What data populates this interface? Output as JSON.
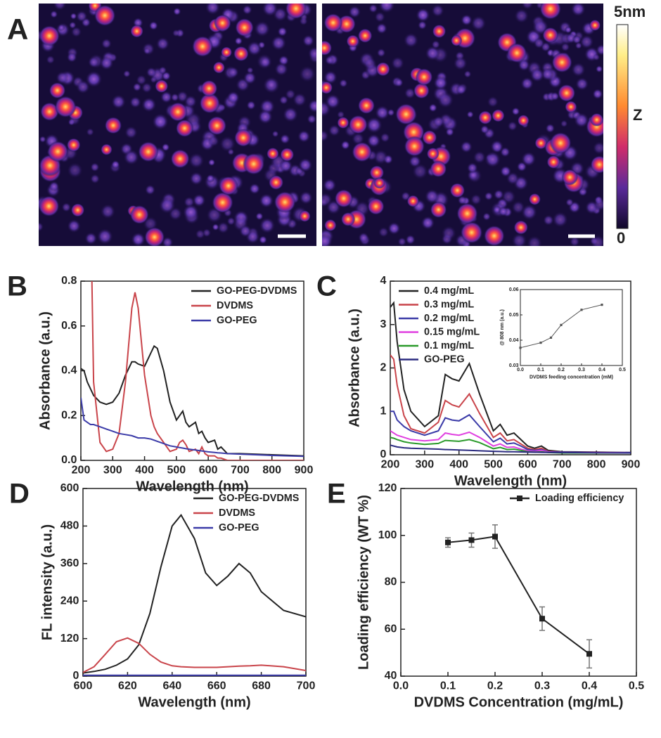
{
  "image_panel": {
    "panel": "A",
    "colorbar_top": "5nm",
    "colorbar_axis": "Z",
    "colorbar_bottom": "0"
  },
  "chart_data": [
    {
      "type": "line",
      "panel": "B",
      "xlabel": "Wavelength (nm)",
      "ylabel": "Absorbance (a.u.)",
      "xlim": [
        200,
        900
      ],
      "xticks": [
        200,
        300,
        400,
        500,
        600,
        700,
        800,
        900
      ],
      "ylim": [
        0,
        0.8
      ],
      "yticks": [
        {
          "value": 0,
          "label": "0.0"
        },
        0.2,
        0.4,
        0.6,
        0.8
      ],
      "legend": "upper right",
      "x": [
        200,
        210,
        220,
        230,
        240,
        260,
        280,
        300,
        320,
        340,
        360,
        370,
        380,
        400,
        420,
        430,
        440,
        460,
        480,
        500,
        510,
        520,
        530,
        540,
        560,
        570,
        580,
        590,
        600,
        620,
        630,
        640,
        660,
        700,
        800,
        900
      ],
      "series": [
        {
          "name": "GO-PEG-DVDMS",
          "color": "#222222",
          "values": [
            0.41,
            0.4,
            0.35,
            0.32,
            0.29,
            0.26,
            0.25,
            0.26,
            0.3,
            0.38,
            0.44,
            0.44,
            0.43,
            0.42,
            0.48,
            0.51,
            0.5,
            0.4,
            0.26,
            0.18,
            0.2,
            0.22,
            0.17,
            0.15,
            0.17,
            0.12,
            0.13,
            0.1,
            0.08,
            0.09,
            0.05,
            0.06,
            0.03,
            0.03,
            0.025,
            0.02
          ]
        },
        {
          "name": "DVDMS",
          "color": "#c9444a",
          "values": [
            null,
            null,
            null,
            1.2,
            0.35,
            0.08,
            0.04,
            0.05,
            0.12,
            0.35,
            0.68,
            0.75,
            0.68,
            0.38,
            0.2,
            0.15,
            0.12,
            0.08,
            0.04,
            0.05,
            0.08,
            0.09,
            0.07,
            0.04,
            0.05,
            0.03,
            0.06,
            0.03,
            0.02,
            0.02,
            0.01,
            0.01,
            0,
            0,
            0,
            0
          ]
        },
        {
          "name": "GO-PEG",
          "color": "#3b3ba8",
          "values": [
            0.28,
            0.18,
            0.17,
            0.16,
            0.16,
            0.15,
            0.14,
            0.13,
            0.12,
            0.115,
            0.11,
            0.105,
            0.1,
            0.1,
            0.095,
            0.09,
            0.085,
            0.075,
            0.065,
            0.06,
            0.057,
            0.055,
            0.052,
            0.05,
            0.046,
            0.044,
            0.042,
            0.04,
            0.038,
            0.035,
            0.034,
            0.033,
            0.03,
            0.028,
            0.022,
            0.018
          ]
        }
      ]
    },
    {
      "type": "line",
      "panel": "C",
      "xlabel": "Wavelength (nm)",
      "ylabel": "Absorbance (a.u.)",
      "xlim": [
        200,
        900
      ],
      "xticks": [
        200,
        300,
        400,
        500,
        600,
        700,
        800,
        900
      ],
      "ylim": [
        0,
        4
      ],
      "yticks": [
        0,
        1,
        2,
        3,
        4
      ],
      "legend": "upper left",
      "x": [
        200,
        210,
        220,
        240,
        260,
        300,
        340,
        360,
        380,
        400,
        430,
        460,
        500,
        520,
        540,
        560,
        580,
        600,
        620,
        640,
        660,
        700,
        800,
        900
      ],
      "series": [
        {
          "name": "0.4 mg/mL",
          "color": "#222222",
          "values": [
            3.4,
            3.5,
            2.6,
            1.5,
            1.0,
            0.65,
            0.9,
            1.85,
            1.75,
            1.7,
            2.1,
            1.4,
            0.55,
            0.7,
            0.45,
            0.5,
            0.35,
            0.2,
            0.15,
            0.2,
            0.1,
            0.07,
            0.06,
            0.05
          ]
        },
        {
          "name": "0.3 mg/mL",
          "color": "#c9444a",
          "values": [
            2.3,
            2.2,
            1.6,
            0.9,
            0.6,
            0.5,
            0.75,
            1.25,
            1.15,
            1.1,
            1.4,
            0.95,
            0.4,
            0.5,
            0.32,
            0.35,
            0.25,
            0.15,
            0.12,
            0.15,
            0.08,
            0.06,
            0.05,
            0.05
          ]
        },
        {
          "name": "0.2 mg/mL",
          "color": "#3b3ba8",
          "values": [
            1.0,
            1.0,
            0.8,
            0.65,
            0.55,
            0.45,
            0.55,
            0.85,
            0.8,
            0.78,
            0.92,
            0.65,
            0.3,
            0.38,
            0.25,
            0.27,
            0.2,
            0.12,
            0.1,
            0.12,
            0.07,
            0.06,
            0.05,
            0.05
          ]
        },
        {
          "name": "0.15 mg/mL",
          "color": "#e040e0",
          "values": [
            0.55,
            0.5,
            0.45,
            0.4,
            0.35,
            0.32,
            0.35,
            0.5,
            0.47,
            0.45,
            0.52,
            0.4,
            0.2,
            0.25,
            0.17,
            0.18,
            0.13,
            0.09,
            0.08,
            0.1,
            0.06,
            0.05,
            0.05,
            0.04
          ]
        },
        {
          "name": "0.1 mg/mL",
          "color": "#2a9a2a",
          "values": [
            0.4,
            0.38,
            0.35,
            0.3,
            0.27,
            0.24,
            0.26,
            0.33,
            0.32,
            0.31,
            0.35,
            0.28,
            0.14,
            0.17,
            0.12,
            0.13,
            0.1,
            0.07,
            0.06,
            0.07,
            0.05,
            0.04,
            0.04,
            0.04
          ]
        },
        {
          "name": "GO-PEG",
          "color": "#2b2b80",
          "values": [
            0.22,
            0.2,
            0.18,
            0.16,
            0.15,
            0.14,
            0.13,
            0.12,
            0.115,
            0.11,
            0.1,
            0.09,
            0.08,
            0.075,
            0.07,
            0.068,
            0.065,
            0.06,
            0.058,
            0.055,
            0.053,
            0.05,
            0.045,
            0.04
          ]
        }
      ],
      "inset": {
        "type": "line",
        "markers": true,
        "xlabel": "DVDMS feeding concentration (mM)",
        "ylabel": "@ 808 nm (a.u.)",
        "xlim": [
          0,
          0.5
        ],
        "xticks": [
          {
            "value": 0,
            "label": "0.0"
          },
          0.1,
          0.2,
          0.3,
          0.4,
          0.5
        ],
        "ylim": [
          0.03,
          0.06
        ],
        "yticks": [
          0.03,
          0.04,
          0.05,
          0.06
        ],
        "x": [
          0,
          0.1,
          0.15,
          0.2,
          0.3,
          0.4
        ],
        "series": [
          {
            "color": "#555555",
            "values": [
              0.037,
              0.039,
              0.041,
              0.046,
              0.052,
              0.054
            ]
          }
        ]
      }
    },
    {
      "type": "line",
      "panel": "D",
      "xlabel": "Wavelength (nm)",
      "ylabel": "FL intensity (a.u.)",
      "xlim": [
        600,
        700
      ],
      "xticks": [
        600,
        620,
        640,
        660,
        680,
        700
      ],
      "ylim": [
        0,
        600
      ],
      "yticks": [
        0,
        120,
        240,
        360,
        480,
        600
      ],
      "legend": "upper right",
      "x": [
        600,
        605,
        610,
        615,
        620,
        625,
        630,
        635,
        640,
        644,
        650,
        655,
        660,
        665,
        670,
        675,
        680,
        690,
        700
      ],
      "series": [
        {
          "name": "GO-PEG-DVDMS",
          "color": "#222222",
          "values": [
            10,
            15,
            22,
            35,
            55,
            100,
            200,
            350,
            480,
            515,
            440,
            330,
            290,
            320,
            360,
            330,
            270,
            210,
            190
          ]
        },
        {
          "name": "DVDMS",
          "color": "#c9444a",
          "values": [
            12,
            30,
            70,
            110,
            122,
            105,
            70,
            45,
            33,
            30,
            28,
            28,
            28,
            30,
            32,
            33,
            35,
            30,
            18
          ]
        },
        {
          "name": "GO-PEG",
          "color": "#3b3ba8",
          "values": [
            3,
            3,
            3,
            3,
            3,
            3,
            3,
            3,
            3,
            3,
            3,
            3,
            3,
            3,
            3,
            3,
            3,
            3,
            3
          ]
        }
      ]
    },
    {
      "type": "line",
      "panel": "E",
      "markers": true,
      "xlabel": "DVDMS Concentration (mg/mL)",
      "ylabel": "Loading efficiency (WT %)",
      "xlim": [
        0,
        0.5
      ],
      "xticks": [
        {
          "value": 0,
          "label": "0.0"
        },
        0.1,
        0.2,
        0.3,
        0.4,
        0.5
      ],
      "ylim": [
        40,
        120
      ],
      "yticks": [
        40,
        60,
        80,
        100,
        120
      ],
      "legend": "upper right",
      "x": [
        0.1,
        0.15,
        0.2,
        0.3,
        0.4
      ],
      "series": [
        {
          "name": "Loading efficiency",
          "color": "#222222",
          "values": [
            97,
            98,
            99.5,
            64.5,
            49.5
          ],
          "errors": [
            2,
            3,
            5,
            5,
            6
          ]
        }
      ]
    }
  ]
}
